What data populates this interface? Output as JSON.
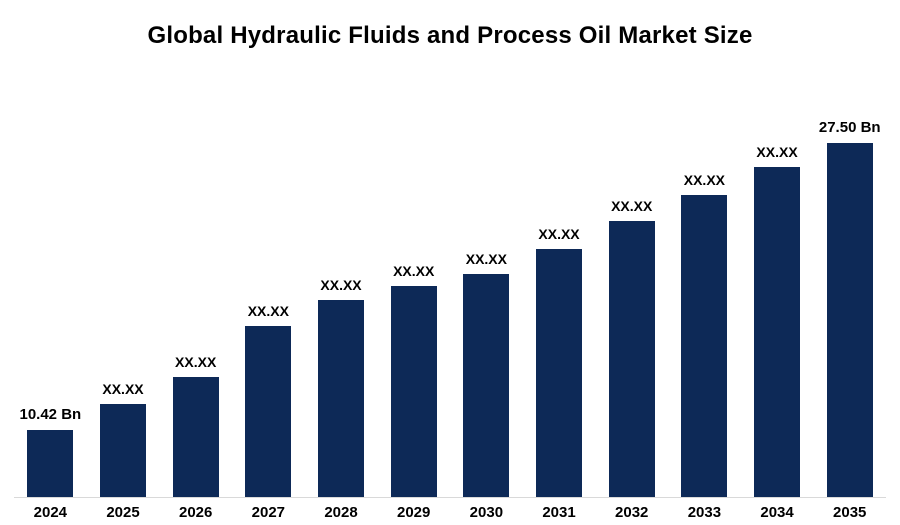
{
  "chart_data": {
    "type": "bar",
    "title": "Global Hydraulic Fluids and Process Oil Market Size",
    "categories": [
      "2024",
      "2025",
      "2026",
      "2027",
      "2028",
      "2029",
      "2030",
      "2031",
      "2032",
      "2033",
      "2034",
      "2035"
    ],
    "display_labels": [
      "10.42 Bn",
      "XX.XX",
      "XX.XX",
      "XX.XX",
      "XX.XX",
      "XX.XX",
      "XX.XX",
      "XX.XX",
      "XX.XX",
      "XX.XX",
      "XX.XX",
      "27.50 Bn"
    ],
    "values": [
      10.42,
      11.95,
      13.55,
      16.6,
      18.15,
      18.95,
      19.7,
      21.2,
      22.85,
      24.4,
      26.05,
      27.5
    ],
    "values_note": "Only 2024 (10.42 Bn) and 2035 (27.50 Bn) are labeled; intermediate values are masked as XX.XX and estimated from bar heights",
    "unit": "Bn",
    "ylim": [
      6.4,
      27.5
    ],
    "xlabel": "",
    "ylabel": "",
    "legend": false,
    "grid": false,
    "bar_color": "#0d2957",
    "title_color": "#000000",
    "axis_line_color": "#d9d9d9"
  }
}
